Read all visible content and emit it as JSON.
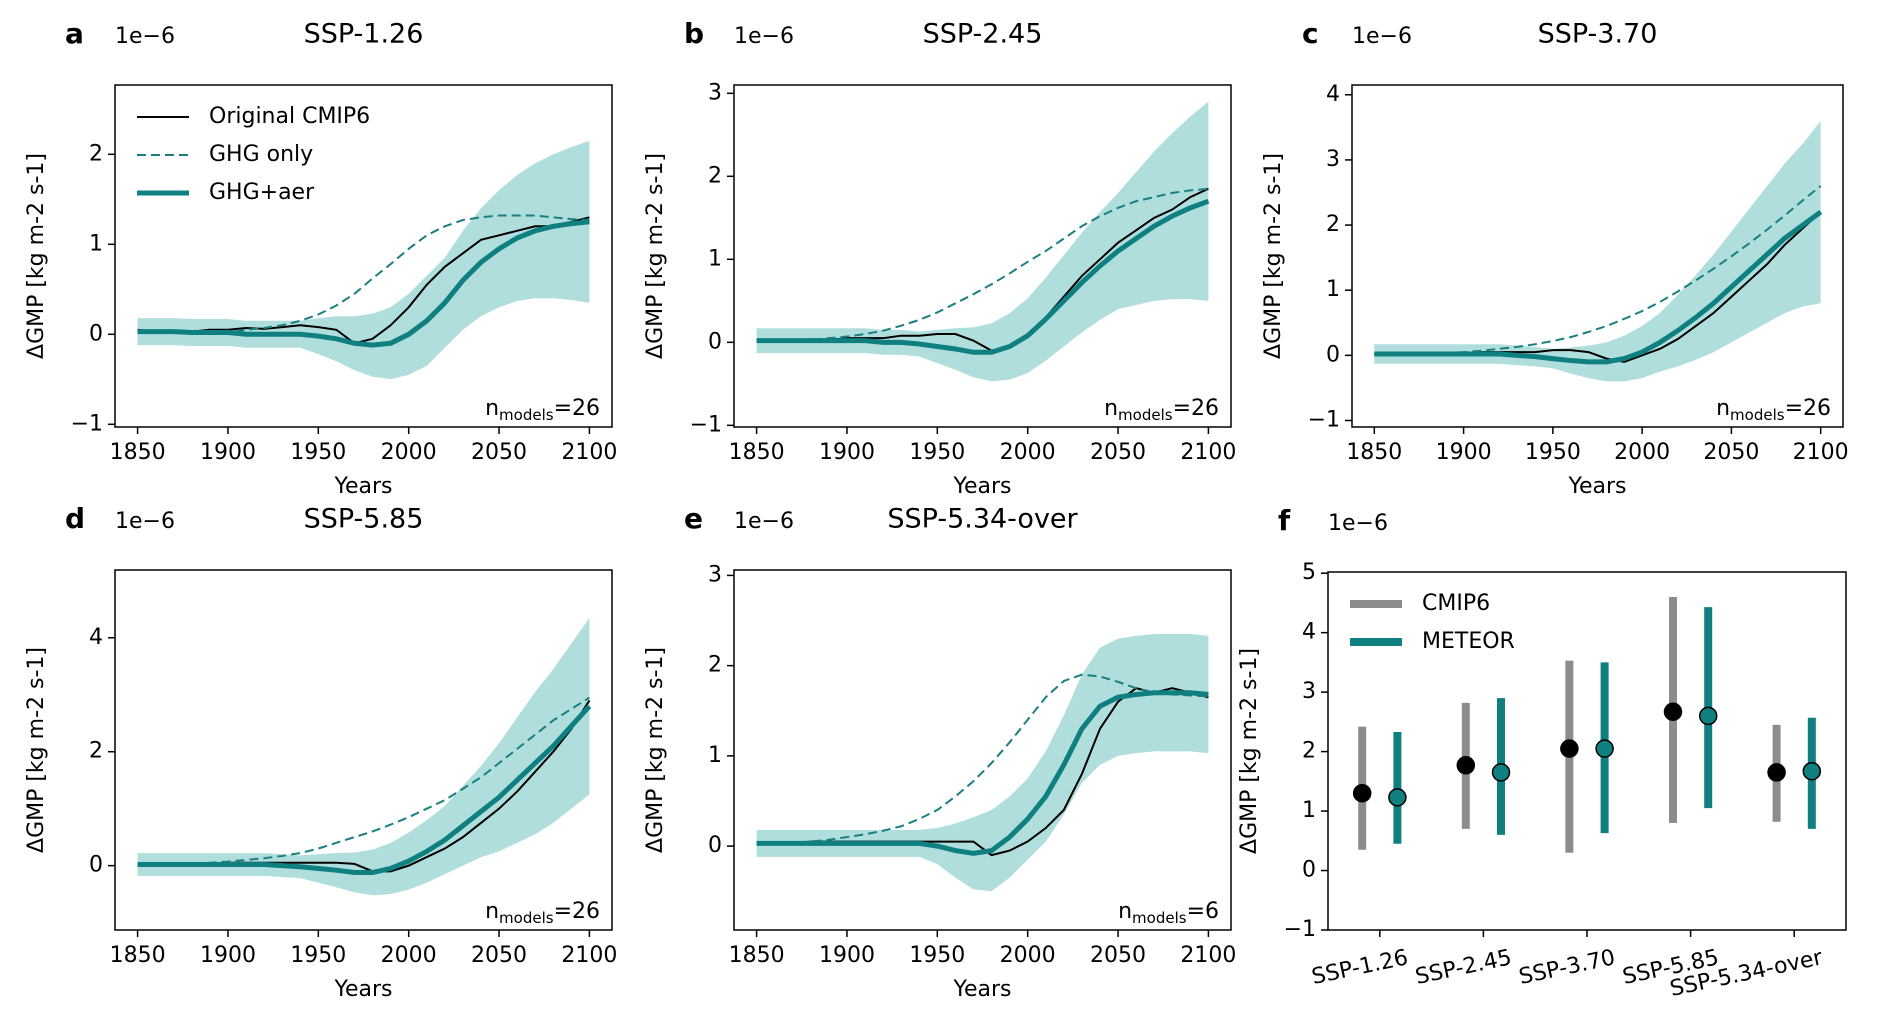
{
  "chart_data": [
    {
      "type": "line",
      "panel": "a",
      "title": "SSP-1.26",
      "offset_text": "1e−6",
      "y_label": "ΔGMP [kg m-2 s-1]",
      "x_label": "Years",
      "annotation": {
        "base": "n",
        "sub": "models",
        "text": "=26"
      },
      "legend": "upper left",
      "xlim": [
        1837.5,
        2112.5
      ],
      "xticks": [
        1850,
        1900,
        1950,
        2000,
        2050,
        2100
      ],
      "ylim": [
        -1.03,
        2.77
      ],
      "yticks": [
        {
          "value": -1,
          "label": "−1"
        },
        0,
        1,
        2
      ],
      "x": [
        1850,
        1860,
        1870,
        1880,
        1890,
        1900,
        1910,
        1920,
        1930,
        1940,
        1950,
        1960,
        1970,
        1980,
        1990,
        2000,
        2010,
        2020,
        2030,
        2040,
        2050,
        2060,
        2070,
        2080,
        2090,
        2100
      ],
      "series": [
        {
          "name": "Original CMIP6",
          "color": "#000000",
          "style": "solid",
          "width": 2,
          "values": [
            0.05,
            0.03,
            0.02,
            0.03,
            0.05,
            0.05,
            0.07,
            0.06,
            0.08,
            0.1,
            0.08,
            0.05,
            -0.1,
            -0.05,
            0.1,
            0.3,
            0.55,
            0.75,
            0.9,
            1.05,
            1.1,
            1.15,
            1.2,
            1.2,
            1.25,
            1.3
          ]
        },
        {
          "name": "GHG only",
          "color": "#1a7f80",
          "style": "dashed",
          "width": 2,
          "values": [
            0.02,
            0.02,
            0.02,
            0.02,
            0.02,
            0.02,
            0.05,
            0.07,
            0.1,
            0.15,
            0.22,
            0.32,
            0.45,
            0.62,
            0.78,
            0.95,
            1.1,
            1.2,
            1.27,
            1.3,
            1.32,
            1.32,
            1.32,
            1.3,
            1.28,
            1.27
          ]
        },
        {
          "name": "GHG+aer",
          "color": "#0f7f80",
          "style": "solid",
          "width": 5,
          "band_color": "#8fd0cf",
          "values": [
            0.03,
            0.03,
            0.03,
            0.02,
            0.02,
            0.02,
            0.0,
            0.0,
            0.0,
            0.0,
            -0.02,
            -0.05,
            -0.1,
            -0.12,
            -0.1,
            0.0,
            0.15,
            0.35,
            0.6,
            0.8,
            0.95,
            1.07,
            1.15,
            1.2,
            1.23,
            1.25
          ],
          "spread": [
            0.15,
            0.15,
            0.15,
            0.15,
            0.15,
            0.15,
            0.15,
            0.15,
            0.15,
            0.15,
            0.2,
            0.25,
            0.3,
            0.35,
            0.4,
            0.45,
            0.5,
            0.5,
            0.55,
            0.6,
            0.65,
            0.7,
            0.75,
            0.8,
            0.85,
            0.9
          ]
        }
      ]
    },
    {
      "type": "line",
      "panel": "b",
      "title": "SSP-2.45",
      "offset_text": "1e−6",
      "y_label": "ΔGMP [kg m-2 s-1]",
      "x_label": "Years",
      "annotation": {
        "base": "n",
        "sub": "models",
        "text": "=26"
      },
      "xlim": [
        1837.5,
        2112.5
      ],
      "xticks": [
        1850,
        1900,
        1950,
        2000,
        2050,
        2100
      ],
      "ylim": [
        -1.02,
        3.1
      ],
      "yticks": [
        {
          "value": -1,
          "label": "−1"
        },
        0,
        1,
        2,
        3
      ],
      "x": [
        1850,
        1860,
        1870,
        1880,
        1890,
        1900,
        1910,
        1920,
        1930,
        1940,
        1950,
        1960,
        1970,
        1980,
        1990,
        2000,
        2010,
        2020,
        2030,
        2040,
        2050,
        2060,
        2070,
        2080,
        2090,
        2100
      ],
      "series": [
        {
          "color": "#000000",
          "style": "solid",
          "width": 2,
          "values": [
            0.03,
            0.02,
            0.02,
            0.03,
            0.03,
            0.05,
            0.05,
            0.05,
            0.08,
            0.08,
            0.1,
            0.1,
            0.02,
            -0.1,
            -0.05,
            0.1,
            0.3,
            0.55,
            0.8,
            1.0,
            1.2,
            1.35,
            1.5,
            1.6,
            1.75,
            1.85
          ]
        },
        {
          "color": "#1a7f80",
          "style": "dashed",
          "width": 2,
          "values": [
            0.02,
            0.02,
            0.02,
            0.03,
            0.05,
            0.07,
            0.1,
            0.14,
            0.2,
            0.27,
            0.36,
            0.47,
            0.58,
            0.7,
            0.83,
            0.97,
            1.1,
            1.25,
            1.4,
            1.52,
            1.62,
            1.7,
            1.75,
            1.8,
            1.83,
            1.85
          ]
        },
        {
          "color": "#0f7f80",
          "style": "solid",
          "width": 5,
          "band_color": "#8fd0cf",
          "values": [
            0.02,
            0.02,
            0.02,
            0.02,
            0.02,
            0.02,
            0.02,
            0.0,
            0.0,
            -0.02,
            -0.05,
            -0.08,
            -0.12,
            -0.12,
            -0.05,
            0.08,
            0.28,
            0.5,
            0.72,
            0.92,
            1.1,
            1.25,
            1.4,
            1.52,
            1.62,
            1.7
          ],
          "spread": [
            0.15,
            0.15,
            0.15,
            0.15,
            0.15,
            0.15,
            0.15,
            0.15,
            0.15,
            0.15,
            0.2,
            0.25,
            0.3,
            0.35,
            0.4,
            0.45,
            0.5,
            0.55,
            0.6,
            0.65,
            0.7,
            0.8,
            0.9,
            1.0,
            1.1,
            1.2
          ]
        }
      ]
    },
    {
      "type": "line",
      "panel": "c",
      "title": "SSP-3.70",
      "offset_text": "1e−6",
      "y_label": "ΔGMP [kg m-2 s-1]",
      "x_label": "Years",
      "annotation": {
        "base": "n",
        "sub": "models",
        "text": "=26"
      },
      "xlim": [
        1837.5,
        2112.5
      ],
      "xticks": [
        1850,
        1900,
        1950,
        2000,
        2050,
        2100
      ],
      "ylim": [
        -1.1,
        4.15
      ],
      "yticks": [
        {
          "value": -1,
          "label": "−1"
        },
        0,
        1,
        2,
        3,
        4
      ],
      "x": [
        1850,
        1860,
        1870,
        1880,
        1890,
        1900,
        1910,
        1920,
        1930,
        1940,
        1950,
        1960,
        1970,
        1980,
        1990,
        2000,
        2010,
        2020,
        2030,
        2040,
        2050,
        2060,
        2070,
        2080,
        2090,
        2100
      ],
      "series": [
        {
          "color": "#000000",
          "style": "solid",
          "width": 2,
          "values": [
            0.02,
            0.02,
            0.0,
            0.02,
            0.03,
            0.03,
            0.05,
            0.05,
            0.05,
            0.05,
            0.08,
            0.08,
            0.05,
            -0.05,
            -0.1,
            0.0,
            0.1,
            0.25,
            0.45,
            0.65,
            0.9,
            1.15,
            1.4,
            1.7,
            1.95,
            2.2
          ]
        },
        {
          "color": "#1a7f80",
          "style": "dashed",
          "width": 2,
          "values": [
            0.02,
            0.02,
            0.02,
            0.03,
            0.04,
            0.05,
            0.07,
            0.1,
            0.13,
            0.17,
            0.22,
            0.28,
            0.36,
            0.45,
            0.56,
            0.68,
            0.82,
            0.98,
            1.15,
            1.33,
            1.52,
            1.72,
            1.93,
            2.15,
            2.38,
            2.6
          ]
        },
        {
          "color": "#0f7f80",
          "style": "solid",
          "width": 5,
          "band_color": "#8fd0cf",
          "values": [
            0.02,
            0.02,
            0.02,
            0.02,
            0.02,
            0.02,
            0.02,
            0.02,
            0.0,
            -0.02,
            -0.05,
            -0.08,
            -0.1,
            -0.1,
            -0.05,
            0.05,
            0.2,
            0.38,
            0.58,
            0.8,
            1.05,
            1.3,
            1.55,
            1.8,
            2.0,
            2.2
          ],
          "spread": [
            0.15,
            0.15,
            0.15,
            0.15,
            0.15,
            0.15,
            0.15,
            0.15,
            0.15,
            0.15,
            0.15,
            0.2,
            0.25,
            0.3,
            0.35,
            0.4,
            0.45,
            0.55,
            0.65,
            0.75,
            0.85,
            0.95,
            1.05,
            1.15,
            1.25,
            1.4
          ]
        }
      ]
    },
    {
      "type": "line",
      "panel": "d",
      "title": "SSP-5.85",
      "offset_text": "1e−6",
      "y_label": "ΔGMP [kg m-2 s-1]",
      "x_label": "Years",
      "annotation": {
        "base": "n",
        "sub": "models",
        "text": "=26"
      },
      "xlim": [
        1837.5,
        2112.5
      ],
      "xticks": [
        1850,
        1900,
        1950,
        2000,
        2050,
        2100
      ],
      "ylim": [
        -1.13,
        5.19
      ],
      "yticks": [
        0,
        2,
        4
      ],
      "x": [
        1850,
        1860,
        1870,
        1880,
        1890,
        1900,
        1910,
        1920,
        1930,
        1940,
        1950,
        1960,
        1970,
        1980,
        1990,
        2000,
        2010,
        2020,
        2030,
        2040,
        2050,
        2060,
        2070,
        2080,
        2090,
        2100
      ],
      "series": [
        {
          "color": "#000000",
          "style": "solid",
          "width": 2,
          "values": [
            0.03,
            0.02,
            0.02,
            0.03,
            0.03,
            0.05,
            0.05,
            0.05,
            0.05,
            0.05,
            0.05,
            0.05,
            0.03,
            -0.1,
            -0.1,
            0.0,
            0.15,
            0.3,
            0.5,
            0.75,
            1.0,
            1.3,
            1.65,
            2.0,
            2.4,
            2.9
          ]
        },
        {
          "color": "#1a7f80",
          "style": "dashed",
          "width": 2,
          "values": [
            0.02,
            0.02,
            0.03,
            0.04,
            0.05,
            0.07,
            0.1,
            0.13,
            0.17,
            0.22,
            0.3,
            0.4,
            0.5,
            0.6,
            0.72,
            0.85,
            1.0,
            1.15,
            1.35,
            1.55,
            1.8,
            2.05,
            2.3,
            2.55,
            2.75,
            2.95
          ]
        },
        {
          "color": "#0f7f80",
          "style": "solid",
          "width": 5,
          "band_color": "#8fd0cf",
          "values": [
            0.02,
            0.02,
            0.02,
            0.02,
            0.02,
            0.02,
            0.02,
            0.02,
            0.0,
            -0.02,
            -0.05,
            -0.08,
            -0.12,
            -0.12,
            -0.05,
            0.08,
            0.25,
            0.45,
            0.7,
            0.95,
            1.2,
            1.5,
            1.8,
            2.1,
            2.45,
            2.8
          ],
          "spread": [
            0.2,
            0.2,
            0.2,
            0.2,
            0.2,
            0.2,
            0.2,
            0.2,
            0.2,
            0.2,
            0.25,
            0.3,
            0.35,
            0.4,
            0.45,
            0.5,
            0.55,
            0.6,
            0.7,
            0.8,
            0.95,
            1.1,
            1.25,
            1.35,
            1.45,
            1.55
          ]
        }
      ]
    },
    {
      "type": "line",
      "panel": "e",
      "title": "SSP-5.34-over",
      "offset_text": "1e−6",
      "y_label": "ΔGMP [kg m-2 s-1]",
      "x_label": "Years",
      "annotation": {
        "base": "n",
        "sub": "models",
        "text": "=6"
      },
      "xlim": [
        1837.5,
        2112.5
      ],
      "xticks": [
        1850,
        1900,
        1950,
        2000,
        2050,
        2100
      ],
      "ylim": [
        -0.93,
        3.06
      ],
      "yticks": [
        0,
        1,
        2,
        3
      ],
      "x": [
        1850,
        1860,
        1870,
        1880,
        1890,
        1900,
        1910,
        1920,
        1930,
        1940,
        1950,
        1960,
        1970,
        1980,
        1990,
        2000,
        2010,
        2020,
        2030,
        2040,
        2050,
        2060,
        2070,
        2080,
        2090,
        2100
      ],
      "series": [
        {
          "color": "#000000",
          "style": "solid",
          "width": 2,
          "values": [
            0.03,
            0.03,
            0.03,
            0.05,
            0.05,
            0.05,
            0.05,
            0.05,
            0.05,
            0.05,
            0.05,
            0.05,
            0.05,
            -0.1,
            -0.05,
            0.05,
            0.2,
            0.4,
            0.8,
            1.3,
            1.6,
            1.75,
            1.7,
            1.75,
            1.7,
            1.65
          ]
        },
        {
          "color": "#1a7f80",
          "style": "dashed",
          "width": 2,
          "values": [
            0.02,
            0.03,
            0.04,
            0.05,
            0.07,
            0.1,
            0.13,
            0.17,
            0.22,
            0.3,
            0.4,
            0.55,
            0.72,
            0.92,
            1.15,
            1.4,
            1.65,
            1.83,
            1.9,
            1.88,
            1.82,
            1.75,
            1.7,
            1.68,
            1.67,
            1.66
          ]
        },
        {
          "color": "#0f7f80",
          "style": "solid",
          "width": 5,
          "band_color": "#8fd0cf",
          "values": [
            0.03,
            0.03,
            0.03,
            0.03,
            0.03,
            0.03,
            0.03,
            0.03,
            0.03,
            0.03,
            0.0,
            -0.05,
            -0.08,
            -0.05,
            0.1,
            0.3,
            0.55,
            0.9,
            1.3,
            1.55,
            1.65,
            1.68,
            1.7,
            1.7,
            1.7,
            1.68
          ],
          "spread": [
            0.15,
            0.15,
            0.15,
            0.15,
            0.15,
            0.15,
            0.15,
            0.15,
            0.15,
            0.15,
            0.2,
            0.3,
            0.4,
            0.45,
            0.45,
            0.45,
            0.5,
            0.55,
            0.6,
            0.65,
            0.65,
            0.65,
            0.65,
            0.65,
            0.65,
            0.65
          ]
        }
      ]
    },
    {
      "type": "errorbar",
      "panel": "f",
      "offset_text": "1e−6",
      "y_label": "ΔGMP [kg m-2 s-1]",
      "legend": "upper left",
      "categories": [
        "SSP-1.26",
        "SSP-2.45",
        "SSP-3.70",
        "SSP-5.85",
        "SSP-5.34-over"
      ],
      "ylim": [
        -1,
        5.02
      ],
      "yticks": [
        {
          "value": -1,
          "label": "−1"
        },
        0,
        1,
        2,
        3,
        4,
        5
      ],
      "series": [
        {
          "name": "CMIP6",
          "color": "#8c8c8c",
          "marker_color": "#000000",
          "values": [
            1.3,
            1.77,
            2.05,
            2.67,
            1.65
          ],
          "low": [
            0.35,
            0.7,
            0.3,
            0.8,
            0.82
          ],
          "high": [
            2.42,
            2.82,
            3.53,
            4.6,
            2.45
          ]
        },
        {
          "name": "METEOR",
          "color": "#0f7f80",
          "marker_color": "#0f7f80",
          "values": [
            1.23,
            1.65,
            2.05,
            2.6,
            1.67
          ],
          "low": [
            0.45,
            0.6,
            0.63,
            1.05,
            0.7
          ],
          "high": [
            2.33,
            2.9,
            3.5,
            4.43,
            2.57
          ]
        }
      ]
    }
  ]
}
